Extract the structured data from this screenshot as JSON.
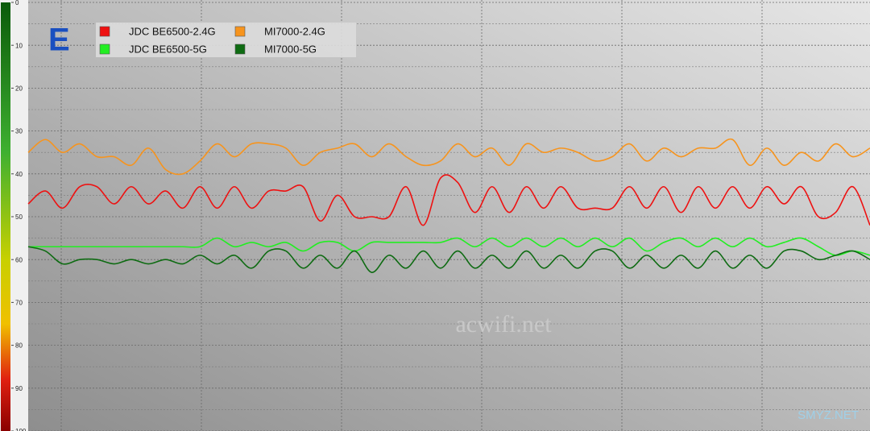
{
  "chart_data": {
    "type": "line",
    "title": "E",
    "ylim": [
      0,
      100
    ],
    "y_inverted": true,
    "yticks": [
      0,
      10,
      20,
      30,
      40,
      50,
      60,
      70,
      80,
      90,
      100
    ],
    "grid": true,
    "annotations": [
      "acwifi.net",
      "SMYZ.NET"
    ],
    "series": [
      {
        "name": "JDC BE6500-2.4G",
        "color": "#ee1111",
        "values": [
          47,
          44,
          48,
          43,
          43,
          47,
          43,
          47,
          44,
          48,
          43,
          48,
          43,
          48,
          44,
          44,
          43,
          51,
          45,
          50,
          50,
          50,
          43,
          52,
          41,
          42,
          49,
          43,
          49,
          43,
          48,
          43,
          48,
          48,
          48,
          43,
          48,
          43,
          49,
          43,
          48,
          43,
          48,
          43,
          47,
          43,
          50,
          49,
          43,
          52
        ]
      },
      {
        "name": "MI7000-2.4G",
        "color": "#f7941d",
        "values": [
          35,
          32,
          35,
          33,
          36,
          36,
          38,
          34,
          39,
          40,
          37,
          33,
          36,
          33,
          33,
          34,
          38,
          35,
          34,
          33,
          36,
          33,
          36,
          38,
          37,
          33,
          36,
          34,
          38,
          33,
          35,
          34,
          35,
          37,
          36,
          33,
          37,
          34,
          36,
          34,
          34,
          32,
          38,
          34,
          38,
          35,
          37,
          33,
          36,
          34
        ]
      },
      {
        "name": "JDC BE6500-5G",
        "color": "#22ee22",
        "values": [
          57,
          57,
          57,
          57,
          57,
          57,
          57,
          57,
          57,
          57,
          57,
          55,
          57,
          56,
          57,
          56,
          58,
          56,
          56,
          58,
          56,
          56,
          56,
          56,
          56,
          55,
          57,
          55,
          57,
          55,
          57,
          55,
          57,
          55,
          57,
          55,
          58,
          56,
          55,
          57,
          55,
          57,
          55,
          57,
          56,
          55,
          57,
          59,
          58,
          59
        ]
      },
      {
        "name": "MI7000-5G",
        "color": "#0e6b12",
        "values": [
          57,
          58,
          61,
          60,
          60,
          61,
          60,
          61,
          60,
          61,
          59,
          61,
          59,
          62,
          58,
          58,
          62,
          59,
          62,
          58,
          63,
          59,
          62,
          58,
          62,
          58,
          62,
          59,
          62,
          58,
          62,
          59,
          62,
          58,
          58,
          62,
          59,
          62,
          59,
          62,
          58,
          62,
          59,
          62,
          58,
          58,
          60,
          59,
          58,
          60
        ]
      }
    ]
  }
}
